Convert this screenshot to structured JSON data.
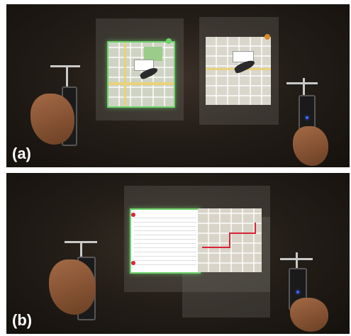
{
  "panels": [
    {
      "label": "(a)"
    },
    {
      "label": "(b)"
    }
  ],
  "colors": {
    "highlight": "#6dd26a",
    "route": "#d8243a",
    "led": "#3a6bff"
  }
}
